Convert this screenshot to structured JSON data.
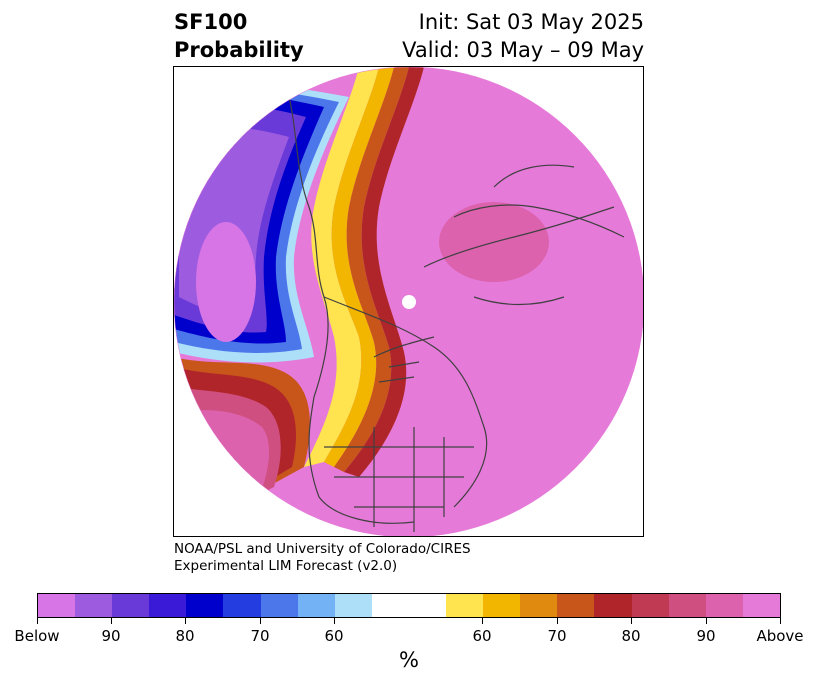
{
  "header": {
    "title_line1": "SF100",
    "title_line2": "Probability",
    "init": "Init: Sat 03 May 2025",
    "valid": "Valid: 03 May – 09 May"
  },
  "credit": {
    "line1": "NOAA/PSL and University of Colorado/CIRES",
    "line2": "Experimental LIM Forecast (v2.0)"
  },
  "map": {
    "projection": "north polar stereographic (circular)",
    "dominant_category": "Above",
    "dominant_color": "#e67ad9",
    "below_core_region": "north-east Pacific",
    "coastline_color": "#404040"
  },
  "colorbar": {
    "colors": [
      "#d774e6",
      "#9d5be0",
      "#6a3ad9",
      "#3a1ad6",
      "#0000cc",
      "#233de0",
      "#4c77eb",
      "#73b2f5",
      "#addff9",
      "#ffffff",
      "#ffffff",
      "#ffe44f",
      "#f3b600",
      "#e08a10",
      "#c8561a",
      "#b0252a",
      "#c03a54",
      "#cf4f80",
      "#dc62ae",
      "#e57ad9"
    ],
    "tick_labels": [
      "Below",
      "90",
      "80",
      "70",
      "60",
      "60",
      "70",
      "80",
      "90",
      "Above"
    ],
    "unit": "%"
  }
}
